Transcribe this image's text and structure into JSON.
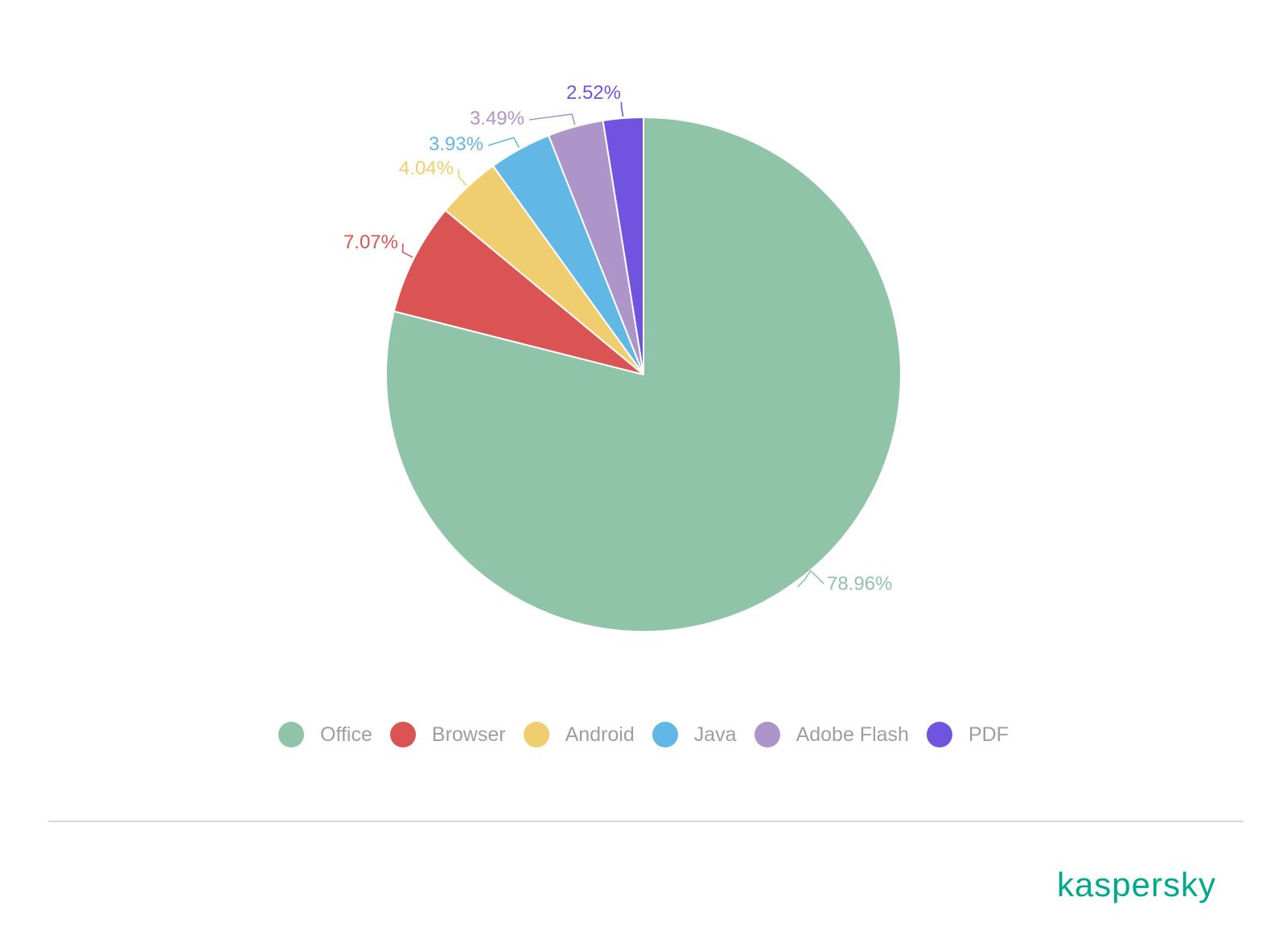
{
  "chart_data": {
    "type": "pie",
    "slices": [
      {
        "label": "Office",
        "value": 78.96,
        "display": "78.96%",
        "color": "#90C4A8"
      },
      {
        "label": "Browser",
        "value": 7.07,
        "display": "7.07%",
        "color": "#DB5454"
      },
      {
        "label": "Android",
        "value": 4.04,
        "display": "4.04%",
        "color": "#F0CD6E"
      },
      {
        "label": "Java",
        "value": 3.93,
        "display": "3.93%",
        "color": "#62B8E5"
      },
      {
        "label": "Adobe Flash",
        "value": 3.49,
        "display": "3.49%",
        "color": "#AD95CA"
      },
      {
        "label": "PDF",
        "value": 2.52,
        "display": "2.52%",
        "color": "#7053DE"
      }
    ],
    "start_angle_deg": 0,
    "direction": "clockwise",
    "legend_position": "bottom"
  },
  "brand": {
    "name": "kaspersky",
    "color": "#00A88E"
  }
}
